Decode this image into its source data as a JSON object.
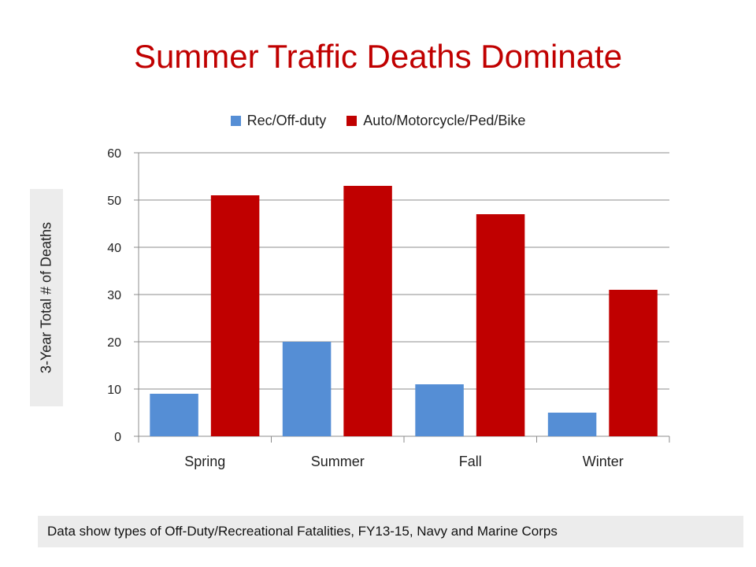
{
  "title": "Summer Traffic Deaths Dominate",
  "footnote": "Data show types of Off-Duty/Recreational Fatalities, FY13-15, Navy and Marine Corps",
  "chart_data": {
    "type": "bar",
    "title": "Summer Traffic Deaths Dominate",
    "xlabel": "",
    "ylabel": "3-Year Total # of Deaths",
    "categories": [
      "Spring",
      "Summer",
      "Fall",
      "Winter"
    ],
    "series": [
      {
        "name": "Rec/Off-duty",
        "color": "#558ed5",
        "values": [
          9,
          20,
          11,
          5
        ]
      },
      {
        "name": "Auto/Motorcycle/Ped/Bike",
        "color": "#c00000",
        "values": [
          51,
          53,
          47,
          31
        ]
      }
    ],
    "ylim": [
      0,
      60
    ],
    "yticks": [
      0,
      10,
      20,
      30,
      40,
      50,
      60
    ],
    "grid": true,
    "legend": "top-center"
  }
}
